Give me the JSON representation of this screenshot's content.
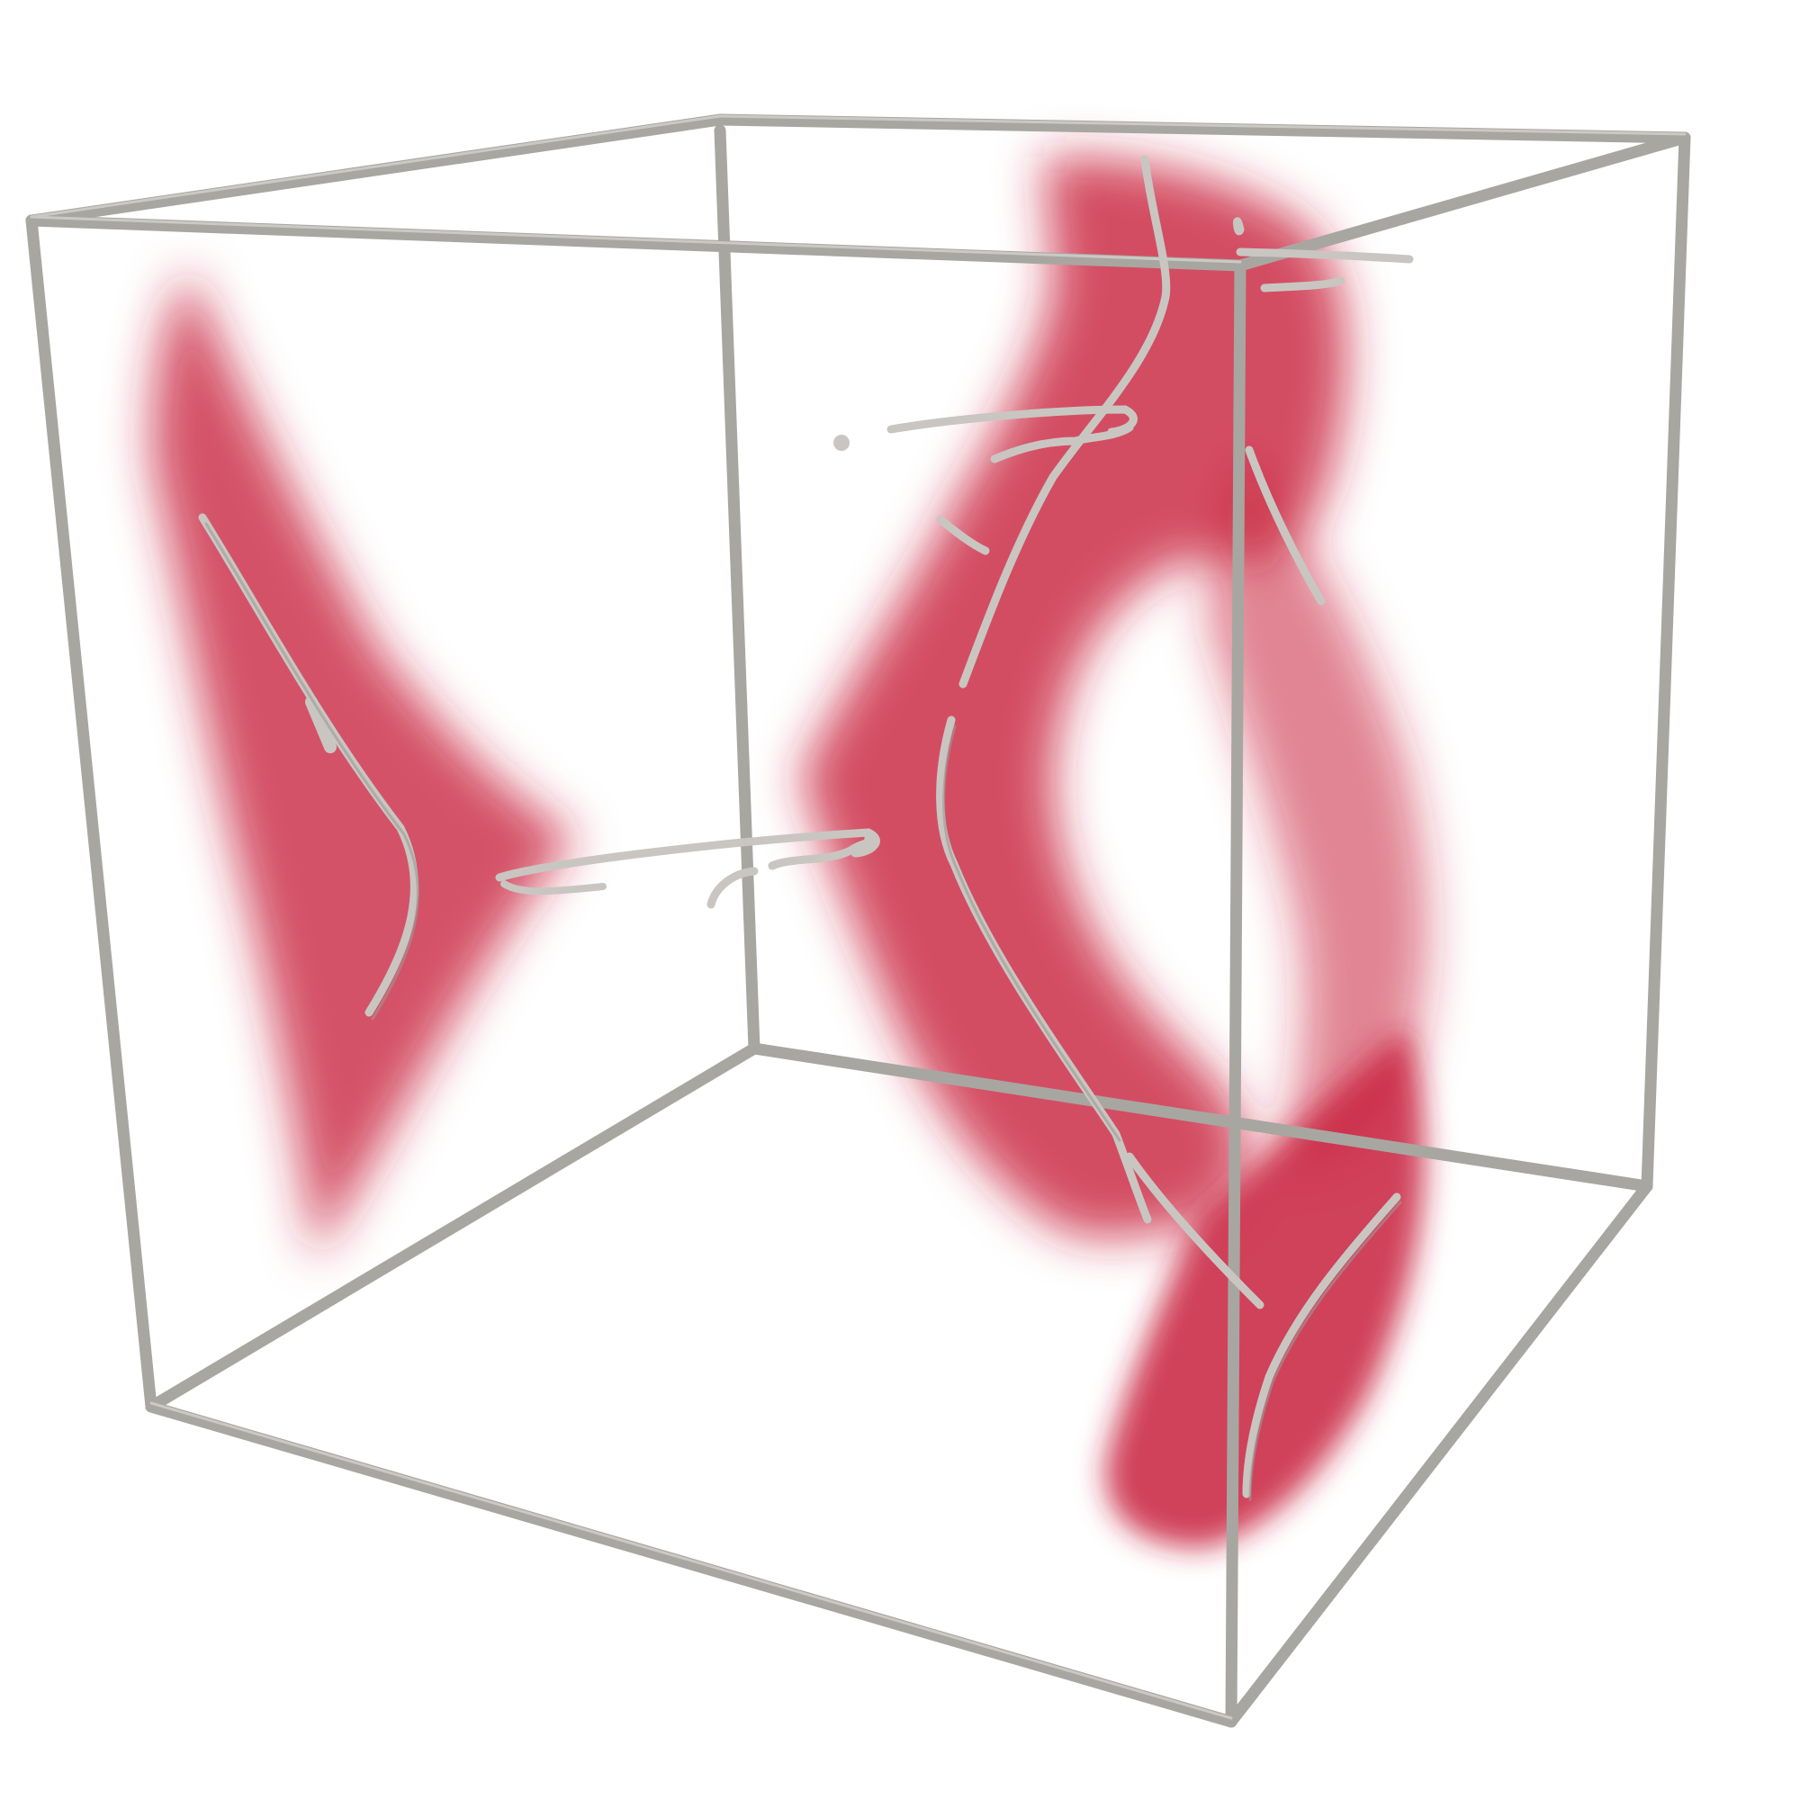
{
  "scene": {
    "background_color": "#ffffff",
    "frame_color": "#a8a6a1",
    "frame_highlight_color": "#cfcdc8",
    "tube_color": "#c9c6c1",
    "tube_shadow_color": "#8f8c87",
    "density_color": "#c8223c",
    "components": [
      "bounding-box-frame",
      "red-density-cloud-left",
      "red-density-cloud-right",
      "red-density-cloud-bottom-right",
      "vortex-core-tubes"
    ]
  }
}
